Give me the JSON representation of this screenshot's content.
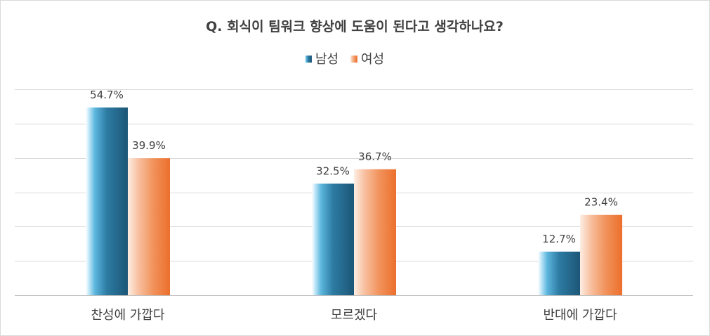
{
  "chart_data": {
    "type": "bar",
    "title": "Q. 회식이 팀워크 향상에 도움이 된다고 생각하나요?",
    "categories": [
      "찬성에 가깝다",
      "모르겠다",
      "반대에 가깝다"
    ],
    "series": [
      {
        "name": "남성",
        "values": [
          54.7,
          32.5,
          12.7
        ],
        "color": "#1f5f80"
      },
      {
        "name": "여성",
        "values": [
          39.9,
          36.7,
          23.4
        ],
        "color": "#ed7d31"
      }
    ],
    "value_suffix": "%",
    "ylim": [
      0,
      60
    ],
    "gridlines": true,
    "legend_position": "top-center",
    "xlabel": "",
    "ylabel": ""
  }
}
